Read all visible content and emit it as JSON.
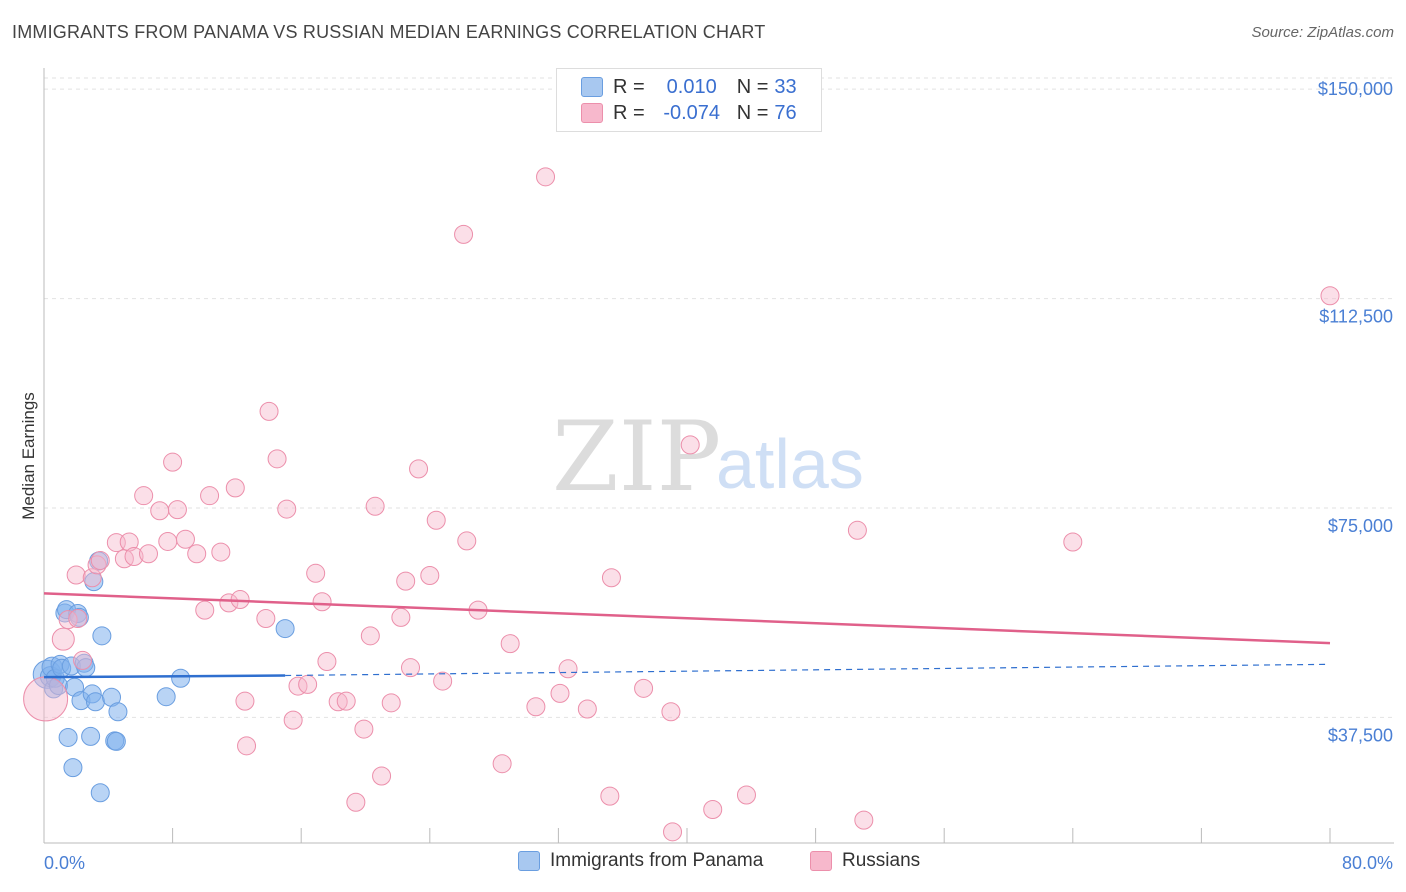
{
  "title": "IMMIGRANTS FROM PANAMA VS RUSSIAN MEDIAN EARNINGS CORRELATION CHART",
  "source": "Source: ZipAtlas.com",
  "watermark": {
    "zip": "ZIP",
    "atlas": "atlas"
  },
  "legend": {
    "rows": [
      {
        "r_label": "R =",
        "r_value": "0.010",
        "n_label": "N =",
        "n_value": "33",
        "color": "#a8c8f0"
      },
      {
        "r_label": "R =",
        "r_value": "-0.074",
        "n_label": "N =",
        "n_value": "76",
        "color": "#f7b8cc"
      }
    ]
  },
  "bottom_legend": [
    {
      "label": "Immigrants from Panama",
      "color": "#a8c8f0"
    },
    {
      "label": "Russians",
      "color": "#f7b8cc"
    }
  ],
  "chart_data": {
    "type": "scatter",
    "title": "IMMIGRANTS FROM PANAMA VS RUSSIAN MEDIAN EARNINGS CORRELATION CHART",
    "xlabel": "",
    "ylabel": "Median Earnings",
    "xlim": [
      0,
      80
    ],
    "ylim": [
      15000,
      152000
    ],
    "x_tick_labels": [
      "0.0%",
      "80.0%"
    ],
    "y_ticks": [
      37500,
      75000,
      112500,
      150000
    ],
    "y_tick_labels": [
      "$37,500",
      "$75,000",
      "$112,500",
      "$150,000"
    ],
    "grid": true,
    "series": [
      {
        "name": "Immigrants from Panama",
        "color": "#7fb0ec",
        "stroke": "#6a9ee0",
        "trend": {
          "x0": 0,
          "y0": 44700,
          "x1": 15,
          "y1": 45000,
          "xdash_end": 80,
          "ydash_end": 47000,
          "color": "#2f6fcf"
        },
        "points": [
          [
            0.2,
            45200,
            14
          ],
          [
            0.4,
            44800,
            10
          ],
          [
            0.5,
            46500,
            10
          ],
          [
            0.6,
            42600,
            9
          ],
          [
            0.7,
            44500,
            9
          ],
          [
            0.9,
            43200,
            9
          ],
          [
            1.0,
            47000,
            9
          ],
          [
            1.1,
            46300,
            9
          ],
          [
            1.3,
            56200,
            9
          ],
          [
            1.4,
            56800,
            9
          ],
          [
            1.5,
            33900,
            9
          ],
          [
            1.7,
            46700,
            9
          ],
          [
            1.8,
            28500,
            9
          ],
          [
            1.9,
            42900,
            9
          ],
          [
            2.1,
            56100,
            9
          ],
          [
            2.2,
            55400,
            9
          ],
          [
            2.3,
            40500,
            9
          ],
          [
            2.5,
            47200,
            9
          ],
          [
            2.6,
            46400,
            9
          ],
          [
            2.9,
            34100,
            9
          ],
          [
            3.0,
            41700,
            9
          ],
          [
            3.1,
            61800,
            9
          ],
          [
            3.2,
            40300,
            9
          ],
          [
            3.4,
            65500,
            9
          ],
          [
            3.5,
            24000,
            9
          ],
          [
            3.6,
            52100,
            9
          ],
          [
            4.2,
            41100,
            9
          ],
          [
            4.4,
            33300,
            9
          ],
          [
            4.5,
            33200,
            9
          ],
          [
            4.6,
            38500,
            9
          ],
          [
            7.6,
            41200,
            9
          ],
          [
            8.5,
            44500,
            9
          ],
          [
            15.0,
            53400,
            9
          ]
        ]
      },
      {
        "name": "Russians",
        "color": "#f7b8cc",
        "stroke": "#ec8fab",
        "trend": {
          "x0": 0,
          "y0": 59700,
          "x1": 80,
          "y1": 50800,
          "color": "#e0608a"
        },
        "points": [
          [
            0.1,
            40800,
            22
          ],
          [
            1.2,
            51500,
            11
          ],
          [
            1.5,
            55000,
            9
          ],
          [
            2.0,
            63000,
            9
          ],
          [
            2.1,
            55200,
            9
          ],
          [
            2.4,
            47700,
            9
          ],
          [
            3.0,
            62500,
            9
          ],
          [
            3.3,
            64800,
            9
          ],
          [
            3.5,
            65600,
            9
          ],
          [
            4.5,
            68800,
            9
          ],
          [
            5.0,
            65900,
            9
          ],
          [
            5.3,
            68900,
            9
          ],
          [
            5.6,
            66300,
            9
          ],
          [
            6.2,
            77200,
            9
          ],
          [
            6.5,
            66800,
            9
          ],
          [
            7.2,
            74500,
            9
          ],
          [
            7.7,
            69000,
            9
          ],
          [
            8.0,
            83200,
            9
          ],
          [
            8.3,
            74700,
            9
          ],
          [
            8.8,
            69400,
            9
          ],
          [
            9.5,
            66800,
            9
          ],
          [
            10.0,
            56700,
            9
          ],
          [
            10.3,
            77200,
            9
          ],
          [
            11.0,
            67100,
            9
          ],
          [
            11.5,
            58000,
            9
          ],
          [
            11.9,
            78600,
            9
          ],
          [
            12.2,
            58600,
            9
          ],
          [
            12.5,
            40400,
            9
          ],
          [
            12.6,
            32400,
            9
          ],
          [
            13.8,
            55200,
            9
          ],
          [
            14.0,
            92300,
            9
          ],
          [
            14.5,
            83800,
            9
          ],
          [
            15.1,
            74800,
            9
          ],
          [
            15.5,
            37000,
            9
          ],
          [
            15.8,
            43100,
            9
          ],
          [
            16.4,
            43400,
            9
          ],
          [
            16.9,
            63300,
            9
          ],
          [
            17.3,
            58200,
            9
          ],
          [
            17.6,
            47500,
            9
          ],
          [
            18.3,
            40300,
            9
          ],
          [
            18.8,
            40400,
            9
          ],
          [
            19.4,
            22300,
            9
          ],
          [
            19.9,
            35400,
            9
          ],
          [
            20.3,
            52100,
            9
          ],
          [
            20.6,
            75300,
            9
          ],
          [
            21.0,
            27000,
            9
          ],
          [
            21.6,
            40100,
            9
          ],
          [
            22.2,
            55400,
            9
          ],
          [
            22.5,
            61900,
            9
          ],
          [
            22.8,
            46400,
            9
          ],
          [
            23.3,
            82000,
            9
          ],
          [
            24.0,
            62900,
            9
          ],
          [
            24.4,
            72800,
            9
          ],
          [
            24.8,
            44000,
            9
          ],
          [
            26.1,
            124000,
            9
          ],
          [
            26.3,
            69100,
            9
          ],
          [
            27.0,
            56700,
            9
          ],
          [
            28.5,
            29200,
            9
          ],
          [
            29.0,
            50700,
            9
          ],
          [
            30.6,
            39400,
            9
          ],
          [
            31.2,
            134300,
            9
          ],
          [
            32.1,
            41800,
            9
          ],
          [
            32.6,
            46200,
            9
          ],
          [
            33.8,
            39000,
            9
          ],
          [
            35.2,
            23400,
            9
          ],
          [
            35.3,
            62500,
            9
          ],
          [
            37.3,
            42700,
            9
          ],
          [
            39.0,
            38500,
            9
          ],
          [
            39.1,
            17000,
            9
          ],
          [
            40.2,
            86300,
            9
          ],
          [
            41.6,
            21000,
            9
          ],
          [
            43.7,
            23600,
            9
          ],
          [
            50.6,
            71000,
            9
          ],
          [
            51.0,
            19100,
            9
          ],
          [
            64.0,
            68900,
            9
          ],
          [
            80.0,
            113000,
            9
          ]
        ]
      }
    ]
  }
}
